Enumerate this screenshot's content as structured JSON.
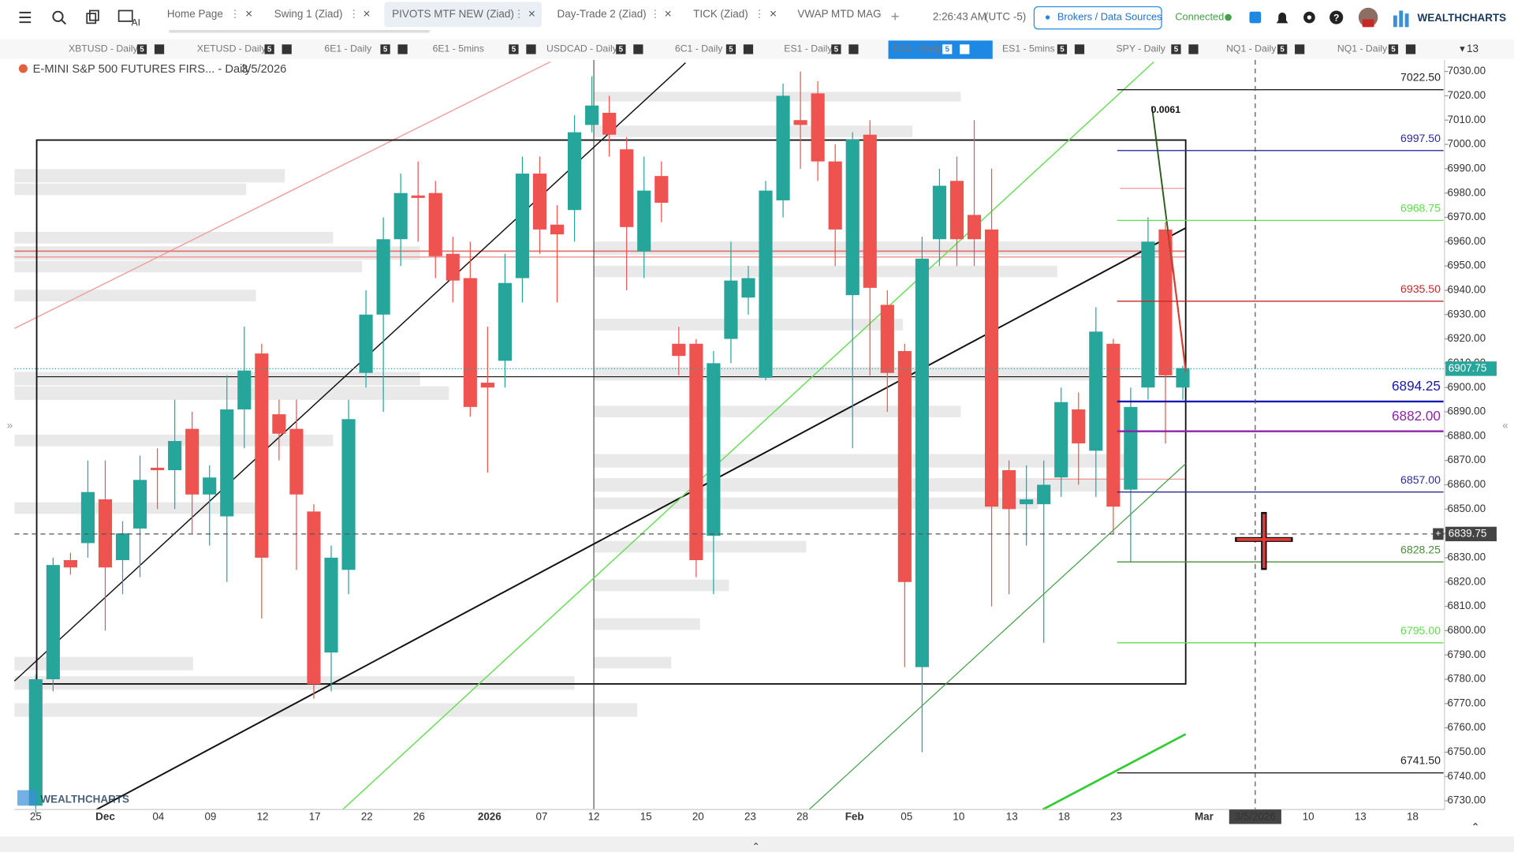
{
  "toolbar": {
    "tabs": [
      "Home Page",
      "Swing 1 (Ziad)",
      "PIVOTS MTF NEW (Ziad)",
      "Day-Trade 2 (Ziad)",
      "TICK (Ziad)",
      "VWAP MTD MAG"
    ],
    "time": "2:26:43 AM",
    "timezone": "(UTC -5)",
    "brokers_button": "Brokers / Data Sources",
    "status": "Connected",
    "brand": "WEALTHCHARTS"
  },
  "symbol_tabs": {
    "tabs": [
      {
        "label": "XBTUSD - Daily",
        "badge": "5"
      },
      {
        "label": "XETUSD - Daily",
        "badge": "5"
      },
      {
        "label": "6E1 - Daily",
        "badge": "5"
      },
      {
        "label": "6E1 - 5mins",
        "badge": "5"
      },
      {
        "label": "USDCAD - Daily",
        "badge": "5"
      },
      {
        "label": "6C1 - Daily",
        "badge": "5"
      },
      {
        "label": "ES1 - Daily",
        "badge": "5"
      },
      {
        "label": "ES1 - Daily",
        "badge": "5"
      },
      {
        "label": "ES1 - 5mins",
        "badge": "5"
      },
      {
        "label": "SPY - Daily",
        "badge": "5"
      },
      {
        "label": "NQ1 - Daily",
        "badge": "5"
      },
      {
        "label": "NQ1 - Daily",
        "badge": "5"
      }
    ],
    "count": "13"
  },
  "chart_data": {
    "type": "candlestick",
    "title": "E-MINI S&P 500 FUTURES FIRS... - Daily",
    "date": "3/5/2026",
    "watermark": "WEALTHCHARTS",
    "colors": {
      "up": "#26a69a",
      "down": "#ef5350"
    },
    "ylim": [
      6730,
      7030
    ],
    "yticks": [
      {
        "value": 7030,
        "label": "7030.00"
      },
      {
        "value": 7020,
        "label": "7020.00"
      },
      {
        "value": 7010,
        "label": "7010.00"
      },
      {
        "value": 7000,
        "label": "7000.00"
      },
      {
        "value": 6990,
        "label": "6990.00"
      },
      {
        "value": 6980,
        "label": "6980.00"
      },
      {
        "value": 6970,
        "label": "6970.00"
      },
      {
        "value": 6960,
        "label": "6960.00"
      },
      {
        "value": 6950,
        "label": "6950.00"
      },
      {
        "value": 6940,
        "label": "6940.00"
      },
      {
        "value": 6930,
        "label": "6930.00"
      },
      {
        "value": 6920,
        "label": "6920.00"
      },
      {
        "value": 6910,
        "label": "6910.00"
      },
      {
        "value": 6900,
        "label": "6900.00"
      },
      {
        "value": 6890,
        "label": "6890.00"
      },
      {
        "value": 6880,
        "label": "6880.00"
      },
      {
        "value": 6870,
        "label": "6870.00"
      },
      {
        "value": 6860,
        "label": "6860.00"
      },
      {
        "value": 6850,
        "label": "6850.00"
      },
      {
        "value": 6840,
        "label": "6840.00"
      },
      {
        "value": 6830,
        "label": "6830.00"
      },
      {
        "value": 6820,
        "label": "6820.00"
      },
      {
        "value": 6810,
        "label": "6810.00"
      },
      {
        "value": 6800,
        "label": "6800.00"
      },
      {
        "value": 6790,
        "label": "6790.00"
      },
      {
        "value": 6780,
        "label": "6780.00"
      },
      {
        "value": 6770,
        "label": "6770.00"
      },
      {
        "value": 6760,
        "label": "6760.00"
      },
      {
        "value": 6750,
        "label": "6750.00"
      },
      {
        "value": 6740,
        "label": "6740.00"
      },
      {
        "value": 6730,
        "label": "6730.00"
      }
    ],
    "x_labels": [
      "25",
      "Dec",
      "04",
      "09",
      "12",
      "17",
      "22",
      "26",
      "2026",
      "07",
      "12",
      "15",
      "20",
      "23",
      "28",
      "Feb",
      "05",
      "10",
      "13",
      "18",
      "23",
      "Mar",
      "3/5/2026",
      "10",
      "13",
      "18"
    ],
    "candles": [
      {
        "open": 6728,
        "high": 6782,
        "low": 6725,
        "close": 6780
      },
      {
        "open": 6780,
        "high": 6830,
        "low": 6775,
        "close": 6827
      },
      {
        "open": 6829,
        "high": 6832,
        "low": 6823,
        "close": 6826
      },
      {
        "open": 6836,
        "high": 6870,
        "low": 6830,
        "close": 6857
      },
      {
        "open": 6854,
        "high": 6870,
        "low": 6800,
        "close": 6826
      },
      {
        "open": 6829,
        "high": 6845,
        "low": 6815,
        "close": 6840
      },
      {
        "open": 6842,
        "high": 6872,
        "low": 6822,
        "close": 6862
      },
      {
        "open": 6867,
        "high": 6875,
        "low": 6850,
        "close": 6866
      },
      {
        "open": 6866,
        "high": 6895,
        "low": 6850,
        "close": 6878
      },
      {
        "open": 6883,
        "high": 6890,
        "low": 6840,
        "close": 6856
      },
      {
        "open": 6856,
        "high": 6868,
        "low": 6835,
        "close": 6863
      },
      {
        "open": 6847,
        "high": 6905,
        "low": 6820,
        "close": 6891
      },
      {
        "open": 6891,
        "high": 6925,
        "low": 6875,
        "close": 6907
      },
      {
        "open": 6914,
        "high": 6918,
        "low": 6805,
        "close": 6830
      },
      {
        "open": 6889,
        "high": 6895,
        "low": 6870,
        "close": 6881
      },
      {
        "open": 6883,
        "high": 6895,
        "low": 6825,
        "close": 6856
      },
      {
        "open": 6849,
        "high": 6852,
        "low": 6772,
        "close": 6778
      },
      {
        "open": 6791,
        "high": 6835,
        "low": 6775,
        "close": 6830
      },
      {
        "open": 6825,
        "high": 6895,
        "low": 6815,
        "close": 6887
      },
      {
        "open": 6906,
        "high": 6940,
        "low": 6900,
        "close": 6930
      },
      {
        "open": 6930,
        "high": 6970,
        "low": 6890,
        "close": 6961
      },
      {
        "open": 6961,
        "high": 6988,
        "low": 6950,
        "close": 6980
      },
      {
        "open": 6979,
        "high": 6993,
        "low": 6960,
        "close": 6978
      },
      {
        "open": 6980,
        "high": 6985,
        "low": 6945,
        "close": 6954
      },
      {
        "open": 6955,
        "high": 6962,
        "low": 6935,
        "close": 6944
      },
      {
        "open": 6945,
        "high": 6960,
        "low": 6888,
        "close": 6892
      },
      {
        "open": 6902,
        "high": 6925,
        "low": 6865,
        "close": 6900
      },
      {
        "open": 6911,
        "high": 6955,
        "low": 6900,
        "close": 6943
      },
      {
        "open": 6945,
        "high": 6995,
        "low": 6935,
        "close": 6988
      },
      {
        "open": 6988,
        "high": 6995,
        "low": 6955,
        "close": 6965
      },
      {
        "open": 6967,
        "high": 6975,
        "low": 6935,
        "close": 6963
      },
      {
        "open": 6973,
        "high": 7012,
        "low": 6960,
        "close": 7005
      },
      {
        "open": 7008,
        "high": 7028,
        "low": 7005,
        "close": 7016
      },
      {
        "open": 7013,
        "high": 7020,
        "low": 6995,
        "close": 7004
      },
      {
        "open": 6998,
        "high": 7003,
        "low": 6940,
        "close": 6966
      },
      {
        "open": 6956,
        "high": 6995,
        "low": 6945,
        "close": 6981
      },
      {
        "open": 6987,
        "high": 6993,
        "low": 6968,
        "close": 6976
      },
      {
        "open": 6918,
        "high": 6925,
        "low": 6905,
        "close": 6913
      },
      {
        "open": 6918,
        "high": 6920,
        "low": 6822,
        "close": 6829
      },
      {
        "open": 6839,
        "high": 6915,
        "low": 6815,
        "close": 6910
      },
      {
        "open": 6920,
        "high": 6960,
        "low": 6910,
        "close": 6944
      },
      {
        "open": 6937,
        "high": 6950,
        "low": 6930,
        "close": 6945
      },
      {
        "open": 6904,
        "high": 6985,
        "low": 6903,
        "close": 6981
      },
      {
        "open": 6977,
        "high": 7025,
        "low": 6970,
        "close": 7020
      },
      {
        "open": 7010,
        "high": 7030,
        "low": 6990,
        "close": 7008
      },
      {
        "open": 7021,
        "high": 7026,
        "low": 6985,
        "close": 6993
      },
      {
        "open": 6993,
        "high": 7000,
        "low": 6950,
        "close": 6965
      },
      {
        "open": 6938,
        "high": 7005,
        "low": 6875,
        "close": 7002
      },
      {
        "open": 7004,
        "high": 7010,
        "low": 6905,
        "close": 6941
      },
      {
        "open": 6934,
        "high": 6940,
        "low": 6890,
        "close": 6906
      },
      {
        "open": 6915,
        "high": 6918,
        "low": 6785,
        "close": 6820
      },
      {
        "open": 6785,
        "high": 6962,
        "low": 6750,
        "close": 6953
      },
      {
        "open": 6961,
        "high": 6990,
        "low": 6950,
        "close": 6983
      },
      {
        "open": 6985,
        "high": 6995,
        "low": 6950,
        "close": 6961
      },
      {
        "open": 6971,
        "high": 7010,
        "low": 6950,
        "close": 6961
      },
      {
        "open": 6965,
        "high": 6990,
        "low": 6810,
        "close": 6851
      },
      {
        "open": 6866,
        "high": 6870,
        "low": 6815,
        "close": 6850
      },
      {
        "open": 6852,
        "high": 6868,
        "low": 6835,
        "close": 6854
      },
      {
        "open": 6852,
        "high": 6870,
        "low": 6795,
        "close": 6860
      },
      {
        "open": 6863,
        "high": 6900,
        "low": 6855,
        "close": 6894
      },
      {
        "open": 6891,
        "high": 6898,
        "low": 6860,
        "close": 6877
      },
      {
        "open": 6874,
        "high": 6933,
        "low": 6855,
        "close": 6923
      },
      {
        "open": 6918,
        "high": 6920,
        "low": 6840,
        "close": 6851
      },
      {
        "open": 6858,
        "high": 6900,
        "low": 6828,
        "close": 6892
      },
      {
        "open": 6900,
        "high": 6970,
        "low": 6895,
        "close": 6960
      },
      {
        "open": 6965,
        "high": 6968,
        "low": 6877,
        "close": 6905
      },
      {
        "open": 6900,
        "high": 6909,
        "low": 6895,
        "close": 6908
      }
    ],
    "levels": [
      {
        "value": 7022.5,
        "label": "7022.50",
        "color": "#222222"
      },
      {
        "value": 6997.5,
        "label": "6997.50",
        "color": "#2b2b9a"
      },
      {
        "value": 6968.75,
        "label": "6968.75",
        "color": "#5ee04a"
      },
      {
        "value": 6935.5,
        "label": "6935.50",
        "color": "#c62828"
      },
      {
        "value": 6894.25,
        "label": "6894.25",
        "color": "#1a1ab0"
      },
      {
        "value": 6882,
        "label": "6882.00",
        "color": "#8e24aa"
      },
      {
        "value": 6857,
        "label": "6857.00",
        "color": "#2b2b9a"
      },
      {
        "value": 6828.25,
        "label": "6828.25",
        "color": "#4c8c3c"
      },
      {
        "value": 6795,
        "label": "6795.00",
        "color": "#5ee04a"
      },
      {
        "value": 6741.5,
        "label": "6741.50",
        "color": "#222222"
      }
    ],
    "current_price": {
      "value": 6907.75,
      "label": "6907.75"
    },
    "crosshair": {
      "value": 6839.75,
      "label": "6839.75"
    },
    "annotation": "0.0061"
  }
}
